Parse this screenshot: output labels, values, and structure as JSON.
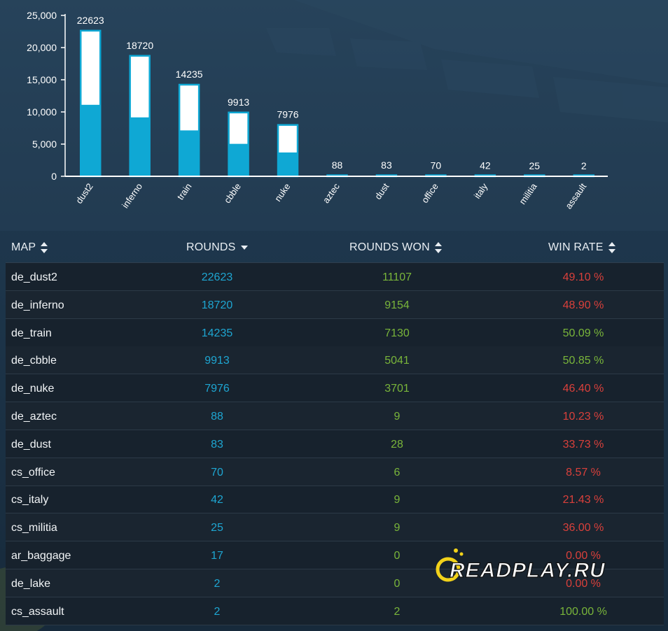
{
  "chart_data": {
    "type": "bar",
    "categories": [
      "dust2",
      "inferno",
      "train",
      "cbble",
      "nuke",
      "aztec",
      "dust",
      "office",
      "italy",
      "militia",
      "assault"
    ],
    "series": [
      {
        "values": [
          22623,
          18720,
          14235,
          9913,
          7976,
          88,
          83,
          70,
          42,
          25,
          2
        ]
      },
      {
        "values": [
          11107,
          9154,
          7130,
          5041,
          3701,
          9,
          28,
          6,
          9,
          9,
          2
        ]
      }
    ],
    "value_labels": [
      "22623",
      "18720",
      "14235",
      "9913",
      "7976",
      "88",
      "83",
      "70",
      "42",
      "25",
      "2"
    ],
    "y_ticks": [
      "0",
      "5,000",
      "10,000",
      "15,000",
      "20,000",
      "25,000"
    ],
    "ylim": [
      0,
      25000
    ],
    "grid": false,
    "colors": {
      "won": "#0fa8d4",
      "total_fill": "#ffffff",
      "outline": "#0fa8d4",
      "axis": "#ffffff"
    }
  },
  "table": {
    "headers": {
      "map": "MAP",
      "rounds": "ROUNDS",
      "rounds_won": "ROUNDS WON",
      "win_rate": "WIN RATE"
    },
    "rows": [
      {
        "map": "de_dust2",
        "rounds": "22623",
        "won": "11107",
        "rate": "49.10 %",
        "rate_status": "bad"
      },
      {
        "map": "de_inferno",
        "rounds": "18720",
        "won": "9154",
        "rate": "48.90 %",
        "rate_status": "bad"
      },
      {
        "map": "de_train",
        "rounds": "14235",
        "won": "7130",
        "rate": "50.09 %",
        "rate_status": "good"
      },
      {
        "map": "de_cbble",
        "rounds": "9913",
        "won": "5041",
        "rate": "50.85 %",
        "rate_status": "good"
      },
      {
        "map": "de_nuke",
        "rounds": "7976",
        "won": "3701",
        "rate": "46.40 %",
        "rate_status": "bad"
      },
      {
        "map": "de_aztec",
        "rounds": "88",
        "won": "9",
        "rate": "10.23 %",
        "rate_status": "bad"
      },
      {
        "map": "de_dust",
        "rounds": "83",
        "won": "28",
        "rate": "33.73 %",
        "rate_status": "bad"
      },
      {
        "map": "cs_office",
        "rounds": "70",
        "won": "6",
        "rate": "8.57 %",
        "rate_status": "bad"
      },
      {
        "map": "cs_italy",
        "rounds": "42",
        "won": "9",
        "rate": "21.43 %",
        "rate_status": "bad"
      },
      {
        "map": "cs_militia",
        "rounds": "25",
        "won": "9",
        "rate": "36.00 %",
        "rate_status": "bad"
      },
      {
        "map": "ar_baggage",
        "rounds": "17",
        "won": "0",
        "rate": "0.00 %",
        "rate_status": "bad"
      },
      {
        "map": "de_lake",
        "rounds": "2",
        "won": "0",
        "rate": "0.00 %",
        "rate_status": "bad"
      },
      {
        "map": "cs_assault",
        "rounds": "2",
        "won": "2",
        "rate": "100.00 %",
        "rate_status": "good"
      }
    ],
    "colors": {
      "rounds": "#1ea6d2",
      "won": "#79b53a",
      "bad": "#d9403b",
      "good": "#79b53a"
    }
  },
  "watermark": {
    "text": "READPLAY.RU"
  }
}
